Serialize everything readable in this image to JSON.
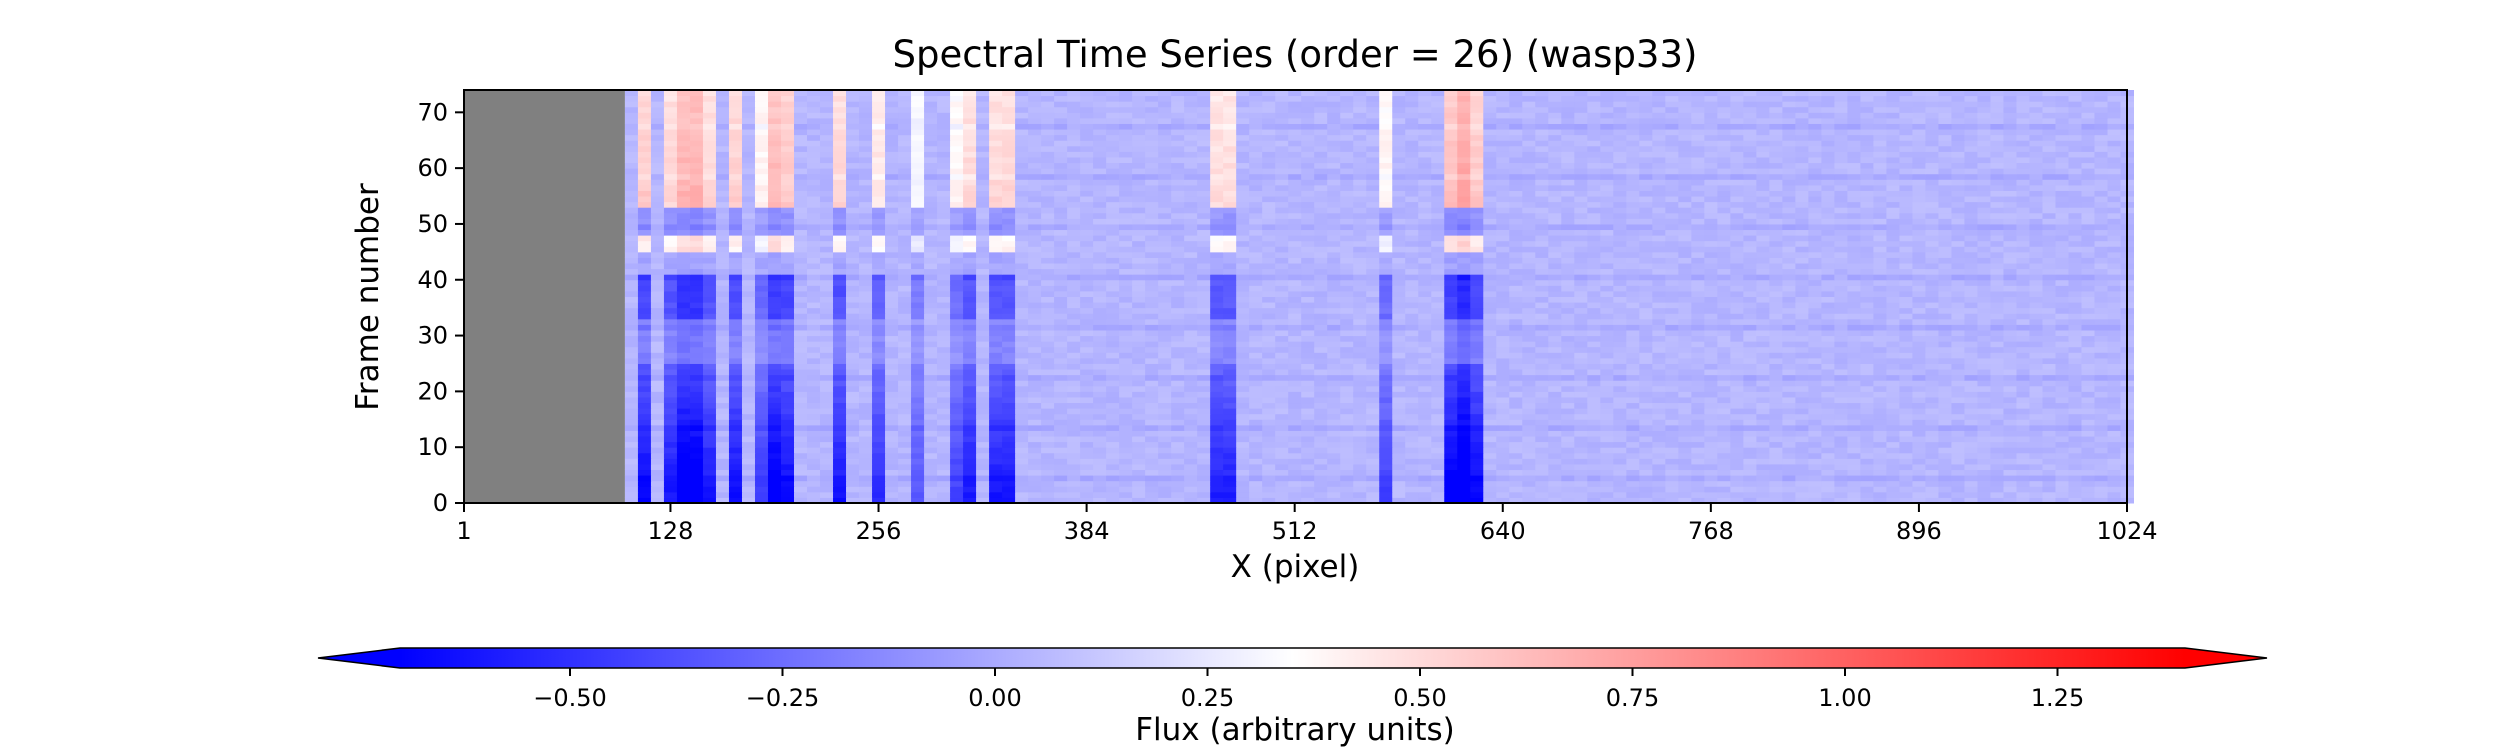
{
  "chart_data": {
    "type": "heatmap",
    "title": "Spectral Time Series (order = 26) (wasp33)",
    "xlabel": "X (pixel)",
    "ylabel": "Frame number",
    "xlim": [
      1,
      1024
    ],
    "ylim": [
      0,
      74
    ],
    "x_ticks": [
      1,
      128,
      256,
      384,
      512,
      640,
      768,
      896,
      1024
    ],
    "y_ticks": [
      0,
      10,
      20,
      30,
      40,
      50,
      60,
      70
    ],
    "masked_x_range": [
      1,
      100
    ],
    "masked_color": "#808080",
    "colormap": "bwr",
    "colorbar": {
      "label": "Flux (arbitrary units)",
      "ticks": [
        -0.5,
        -0.25,
        0.0,
        0.25,
        0.5,
        0.75,
        1.0,
        1.25
      ],
      "tick_labels": [
        "−0.50",
        "−0.25",
        "0.00",
        "0.25",
        "0.50",
        "0.75",
        "1.00",
        "1.25"
      ],
      "range": [
        -0.7,
        1.4
      ],
      "extend": "both",
      "orientation": "horizontal",
      "placement": "bottom"
    },
    "background_level": 0.05,
    "absorption_features": [
      {
        "x_center": 114,
        "width": 10,
        "depth": 0.9
      },
      {
        "x_center": 140,
        "width": 30,
        "depth": 1.0
      },
      {
        "x_center": 170,
        "width": 10,
        "depth": 0.85
      },
      {
        "x_center": 183,
        "width": 6,
        "depth": 0.6
      },
      {
        "x_center": 195,
        "width": 16,
        "depth": 1.0
      },
      {
        "x_center": 230,
        "width": 12,
        "depth": 0.8
      },
      {
        "x_center": 258,
        "width": 10,
        "depth": 0.7
      },
      {
        "x_center": 278,
        "width": 6,
        "depth": 0.55
      },
      {
        "x_center": 310,
        "width": 14,
        "depth": 0.75
      },
      {
        "x_center": 332,
        "width": 16,
        "depth": 0.85
      },
      {
        "x_center": 468,
        "width": 22,
        "depth": 0.75
      },
      {
        "x_center": 570,
        "width": 10,
        "depth": 0.6
      },
      {
        "x_center": 615,
        "width": 30,
        "depth": 1.0
      }
    ],
    "frame_trend": "features appear strong negative (blue) in frames 0-25, weak near 35-40, and positive (red) in frames 45-74"
  }
}
